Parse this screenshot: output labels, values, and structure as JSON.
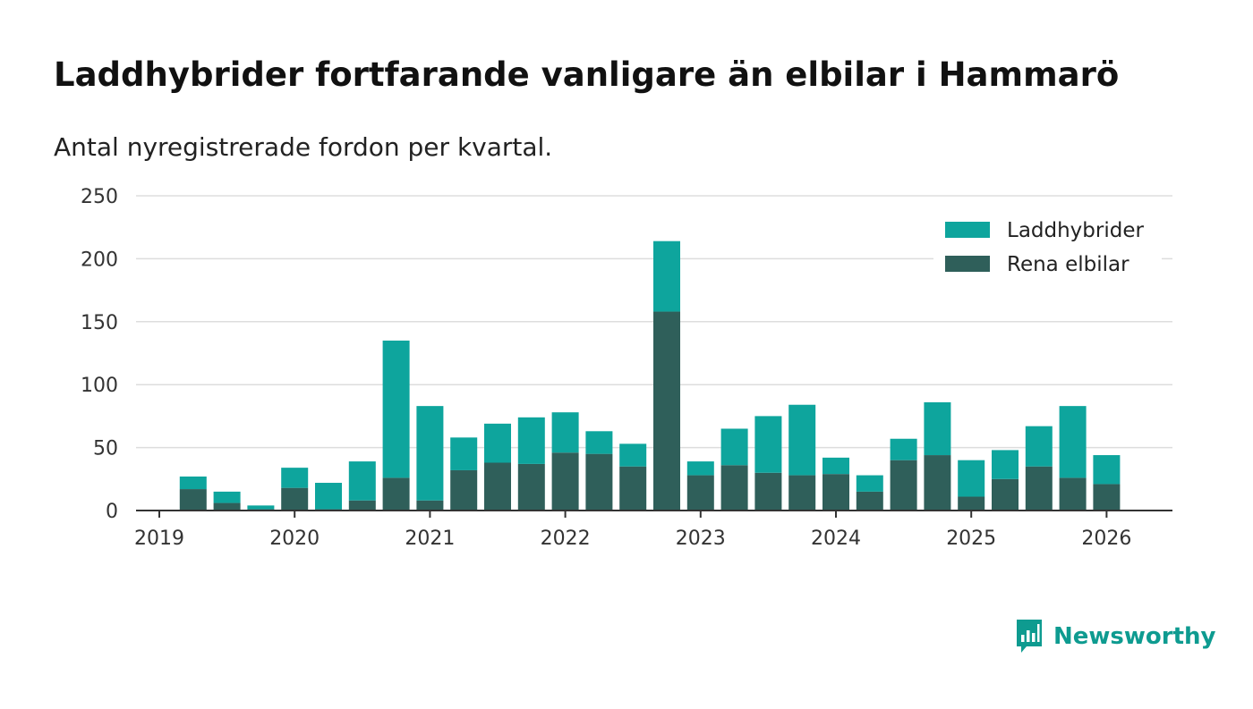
{
  "header": {
    "title": "Laddhybrider fortfarande vanligare än elbilar i Hammarö",
    "subtitle": "Antal nyregistrerade fordon per kvartal."
  },
  "brand": {
    "name": "Newsworthy",
    "icon": "newsworthy-logo-icon",
    "color": "#0e9b90"
  },
  "colors": {
    "laddhybrider": "#0ea59d",
    "rena_elbilar": "#2f5f5a",
    "grid": "#dddddd",
    "axis": "#333333"
  },
  "chart_data": {
    "type": "bar",
    "stacked": true,
    "title": "Laddhybrider fortfarande vanligare än elbilar i Hammarö",
    "subtitle": "Antal nyregistrerade fordon per kvartal.",
    "xlabel": "",
    "ylabel": "",
    "ylim": [
      0,
      250
    ],
    "yticks": [
      "0",
      "50",
      "100",
      "150",
      "200",
      "250"
    ],
    "xticks": [
      "2019",
      "2020",
      "2021",
      "2022",
      "2023",
      "2024",
      "2025",
      "2026"
    ],
    "grid": true,
    "legend_position": "top-right",
    "categories": [
      "2019 Q1",
      "2019 Q2",
      "2019 Q3",
      "2019 Q4",
      "2020 Q1",
      "2020 Q2",
      "2020 Q3",
      "2020 Q4",
      "2021 Q1",
      "2021 Q2",
      "2021 Q3",
      "2021 Q4",
      "2022 Q1",
      "2022 Q2",
      "2022 Q3",
      "2022 Q4",
      "2023 Q1",
      "2023 Q2",
      "2023 Q3",
      "2023 Q4",
      "2024 Q1",
      "2024 Q2",
      "2024 Q3",
      "2024 Q4",
      "2025 Q1",
      "2025 Q2",
      "2025 Q3",
      "2025 Q4",
      "2026 Q1"
    ],
    "series": [
      {
        "name": "Rena elbilar",
        "values": [
          0,
          17,
          6,
          1,
          18,
          1,
          8,
          26,
          8,
          32,
          38,
          37,
          46,
          45,
          35,
          158,
          28,
          36,
          30,
          28,
          29,
          15,
          40,
          44,
          11,
          25,
          35,
          26,
          21
        ]
      },
      {
        "name": "Laddhybrider",
        "values": [
          0,
          10,
          9,
          3,
          16,
          21,
          31,
          109,
          75,
          26,
          31,
          37,
          32,
          18,
          18,
          56,
          11,
          29,
          45,
          56,
          13,
          13,
          17,
          42,
          29,
          23,
          32,
          57,
          23
        ]
      }
    ]
  }
}
